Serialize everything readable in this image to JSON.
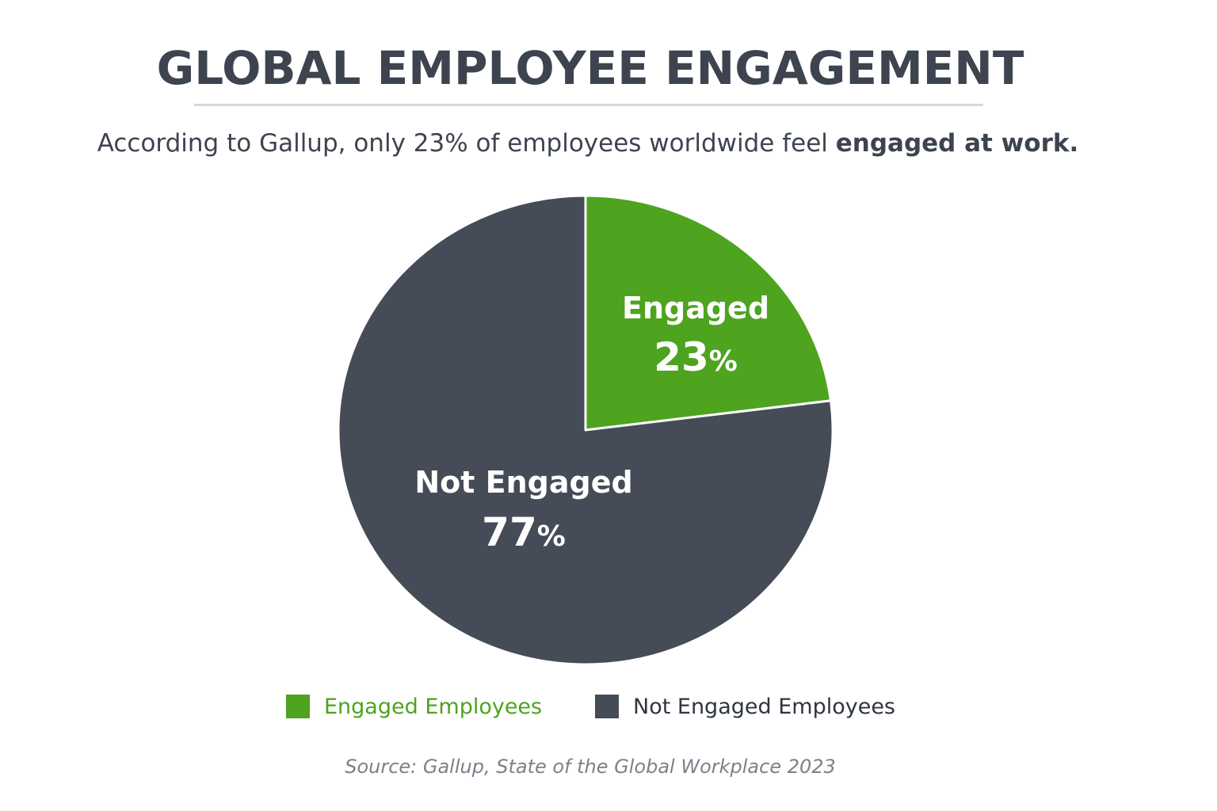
{
  "chart_data": {
    "type": "pie",
    "title": "GLOBAL EMPLOYEE ENGAGEMENT",
    "subtitle_plain": "According to Gallup, only 23% of employees worldwide feel ",
    "subtitle_bold": "engaged at work.",
    "slices": [
      {
        "label": "Engaged",
        "value": 23,
        "value_text": "23",
        "percent_sign": "%",
        "legend": "Engaged Employees",
        "color": "#4ea31f",
        "legend_text_color": "#4ea31f"
      },
      {
        "label": "Not Engaged",
        "value": 77,
        "value_text": "77",
        "percent_sign": "%",
        "legend": "Not Engaged Employees",
        "color": "#454c57",
        "legend_text_color": "#2f3540"
      }
    ],
    "legend_position": "bottom",
    "source": "Source: Gallup, State of the Global Workplace 2023"
  }
}
